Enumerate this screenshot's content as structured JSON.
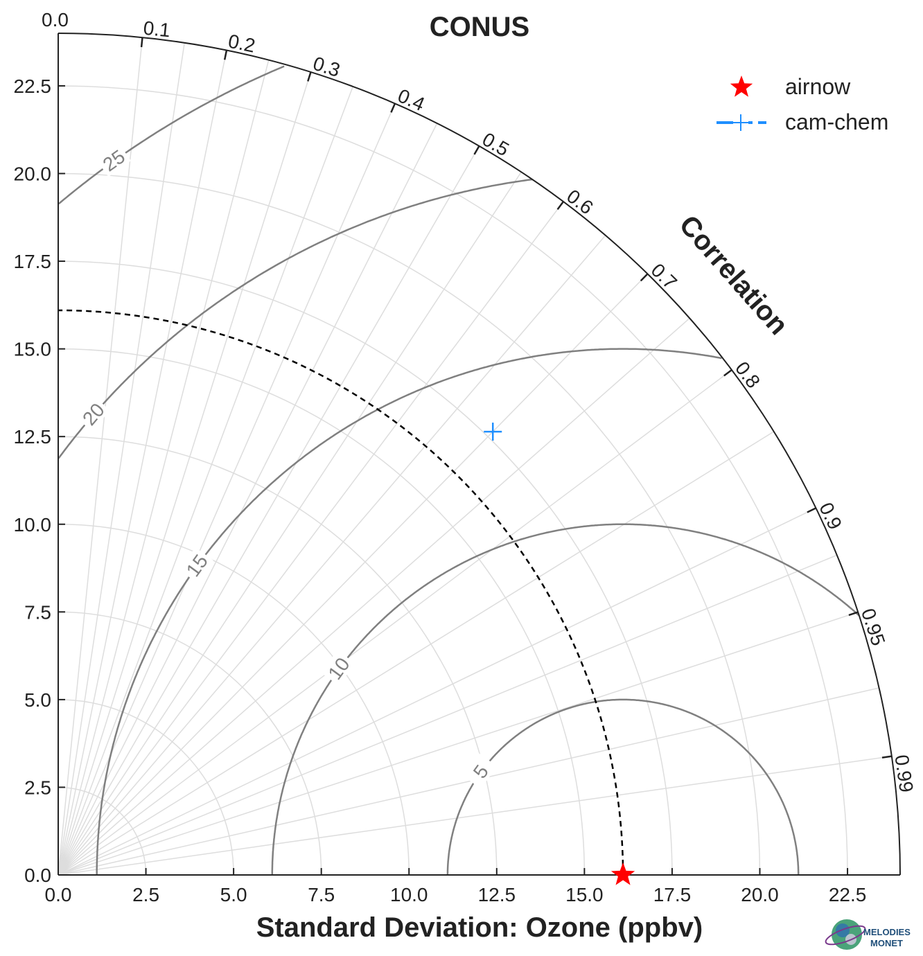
{
  "chart_data": {
    "type": "taylor-diagram",
    "title": "CONUS",
    "xlabel": "Standard Deviation: Ozone (ppbv)",
    "ylabel": "",
    "corr_label": "Correlation",
    "std_ticks": [
      "0.0",
      "2.5",
      "5.0",
      "7.5",
      "10.0",
      "12.5",
      "15.0",
      "17.5",
      "20.0",
      "22.5"
    ],
    "std_range": [
      0,
      24
    ],
    "corr_ticks": [
      "0.0",
      "0.1",
      "0.2",
      "0.3",
      "0.4",
      "0.5",
      "0.6",
      "0.7",
      "0.8",
      "0.9",
      "0.95",
      "0.99"
    ],
    "rmsd_levels": [
      5,
      10,
      15,
      20,
      25
    ],
    "rmsd_labels": [
      "5",
      "10",
      "15",
      "20",
      "25"
    ],
    "grid": true,
    "legend_position": "top-right",
    "series": [
      {
        "name": "airnow",
        "marker": "star",
        "color": "#ff0000",
        "std": 16.1,
        "corr": 1.0
      },
      {
        "name": "cam-chem",
        "marker": "plus",
        "color": "#1f8fff",
        "std": 17.7,
        "corr": 0.7
      }
    ],
    "reference_std": 16.1
  },
  "logo": {
    "line1": "MELODIES",
    "line2": "MONET"
  }
}
